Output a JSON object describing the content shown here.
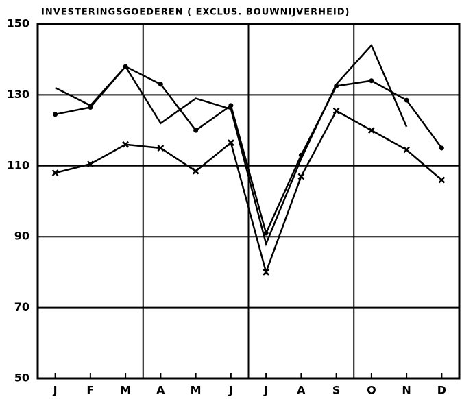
{
  "chart_data": {
    "type": "line",
    "title": "INVESTERINGSGOEDEREN ( EXCLUS. BOUWNIJVERHEID)",
    "categories": [
      "J",
      "F",
      "M",
      "A",
      "M",
      "J",
      "J",
      "A",
      "S",
      "O",
      "N",
      "D"
    ],
    "series": [
      {
        "color": "#000000",
        "marker": "none",
        "values": [
          132,
          127,
          138,
          122,
          129,
          126,
          88,
          112,
          133,
          144,
          121,
          null
        ]
      },
      {
        "color": "#000000",
        "marker": "dot",
        "values": [
          124.5,
          126.5,
          138,
          133,
          120,
          127,
          91,
          113,
          132.5,
          134,
          128.5,
          115
        ]
      },
      {
        "color": "#000000",
        "marker": "cross",
        "values": [
          108,
          110.5,
          116,
          115,
          108.5,
          116.5,
          80,
          107,
          125.5,
          120,
          114.5,
          106
        ]
      }
    ],
    "ylim": [
      50,
      150
    ],
    "yticks": [
      50,
      70,
      90,
      110,
      130,
      150
    ],
    "grid": true
  }
}
